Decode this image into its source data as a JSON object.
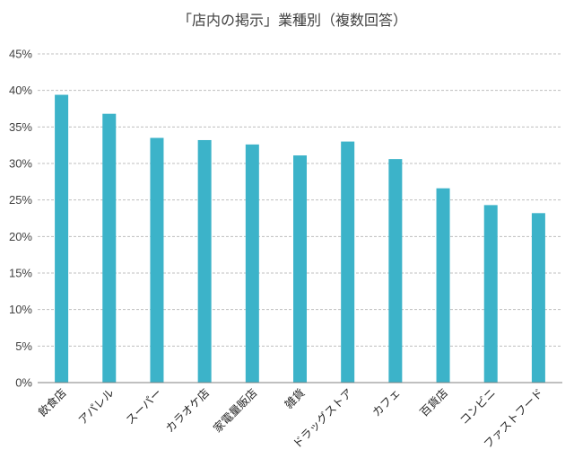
{
  "chart_data": {
    "type": "bar",
    "title": "「店内の掲示」業種別（複数回答）",
    "xlabel": "",
    "ylabel": "",
    "categories": [
      "飲食店",
      "アパレル",
      "スーパー",
      "カラオケ店",
      "家電量販店",
      "雑貨",
      "ドラッグストア",
      "カフェ",
      "百貨店",
      "コンビニ",
      "ファストフード"
    ],
    "values": [
      39.4,
      36.8,
      33.5,
      33.2,
      32.6,
      31.1,
      33.0,
      30.6,
      26.6,
      24.3,
      23.2
    ],
    "ylim": [
      0,
      45
    ],
    "yticks": [
      0,
      5,
      10,
      15,
      20,
      25,
      30,
      35,
      40,
      45
    ],
    "ytick_suffix": "%",
    "grid": true,
    "legend": "none",
    "bar_color": "#3cb3c9"
  }
}
